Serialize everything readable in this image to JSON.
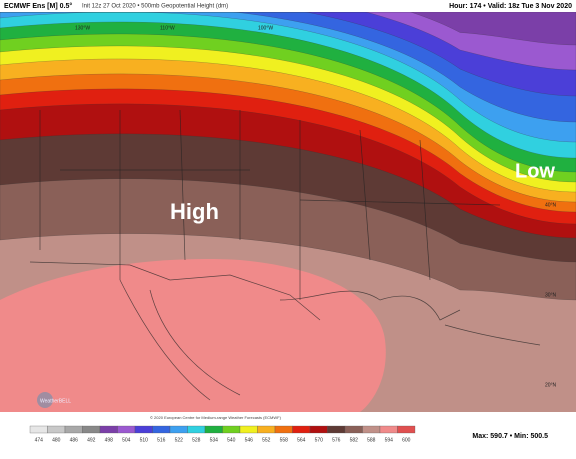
{
  "header": {
    "title": "ECMWF Ens [M] 0.5°",
    "subtitle": "Init 12z 27 Oct 2020 • 500mb Geopotential Height (dm)",
    "valid": "Hour: 174 • Valid: 18z Tue 3 Nov 2020"
  },
  "map": {
    "high": "High",
    "low": "Low",
    "longitudes": [
      "130°W",
      "110°W",
      "100°W"
    ],
    "latitudes": [
      "40°N",
      "30°N",
      "20°N"
    ],
    "credit": "© 2020 European Centre for Medium-range Weather Forecasts (ECMWF)",
    "logo": "WeatherBELL"
  },
  "colorbar": {
    "levels": [
      474,
      480,
      486,
      492,
      498,
      504,
      510,
      516,
      522,
      528,
      534,
      540,
      546,
      552,
      558,
      564,
      570,
      576,
      582,
      588,
      594,
      600
    ],
    "colors": [
      "#e6e6e6",
      "#c8c8c8",
      "#a8a8a8",
      "#888888",
      "#7b3fa8",
      "#9b59d0",
      "#4b3fd8",
      "#3465e0",
      "#3da0f0",
      "#30d0e0",
      "#20b040",
      "#70d020",
      "#f0f020",
      "#f8b020",
      "#f07010",
      "#e02010",
      "#b01010",
      "#5e3a35",
      "#8a6058",
      "#c09088",
      "#f08a8a",
      "#e05050"
    ]
  },
  "stats": "Max: 590.7 • Min: 500.5"
}
